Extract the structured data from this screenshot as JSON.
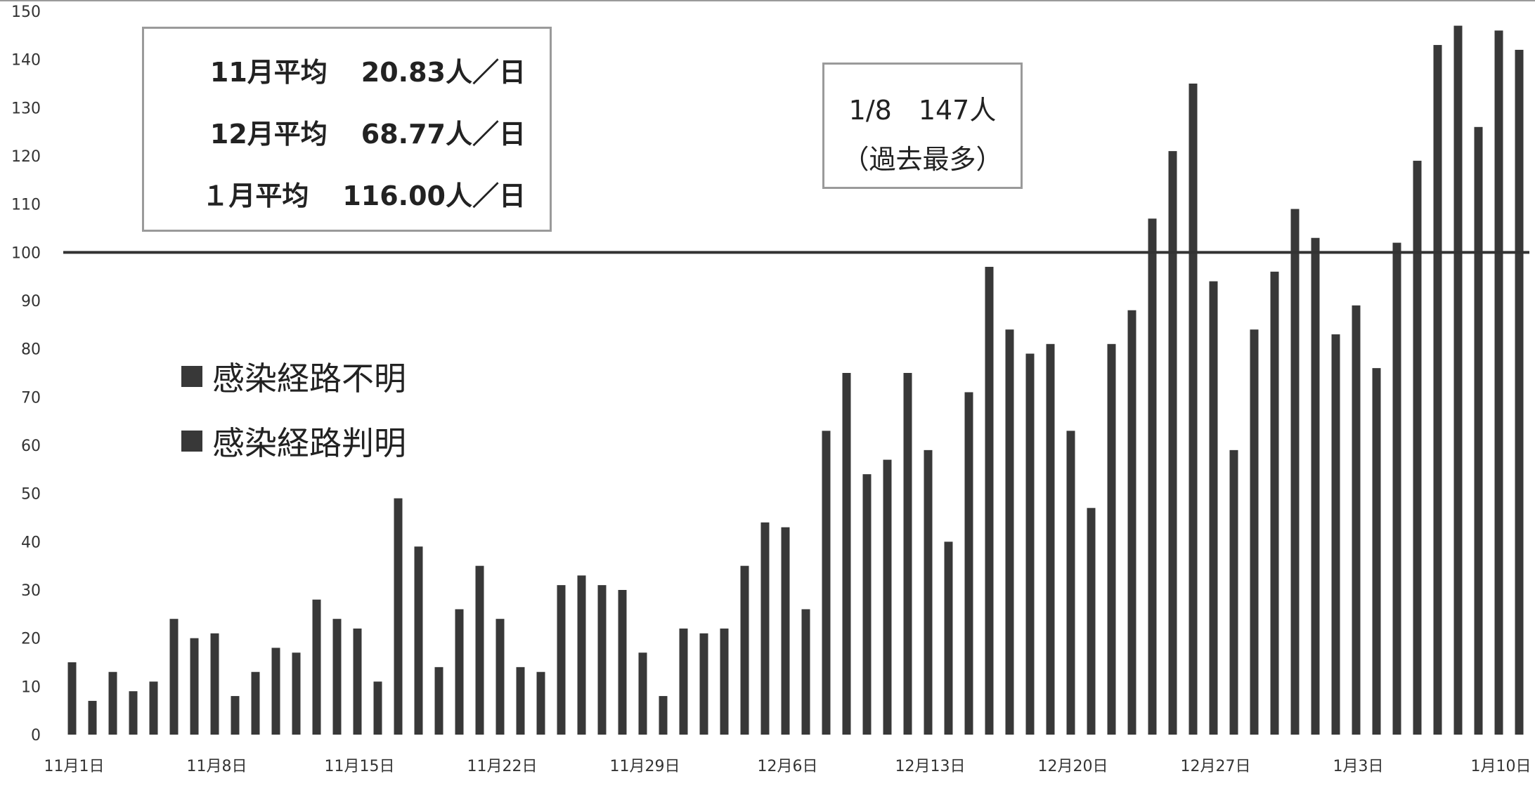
{
  "chart_data": {
    "type": "bar",
    "ylim": [
      0,
      150
    ],
    "y_ticks": [
      "0",
      "10",
      "20",
      "30",
      "40",
      "50",
      "60",
      "70",
      "80",
      "90",
      "100",
      "110",
      "120",
      "130",
      "140",
      "150"
    ],
    "x_tick_labels": [
      {
        "index": 0,
        "label": "11月1日"
      },
      {
        "index": 7,
        "label": "11月8日"
      },
      {
        "index": 14,
        "label": "11月15日"
      },
      {
        "index": 21,
        "label": "11月22日"
      },
      {
        "index": 28,
        "label": "11月29日"
      },
      {
        "index": 35,
        "label": "12月6日"
      },
      {
        "index": 42,
        "label": "12月13日"
      },
      {
        "index": 49,
        "label": "12月20日"
      },
      {
        "index": 56,
        "label": "12月27日"
      },
      {
        "index": 63,
        "label": "1月3日"
      },
      {
        "index": 70,
        "label": "1月10日"
      }
    ],
    "values": [
      15,
      7,
      13,
      9,
      11,
      24,
      20,
      21,
      8,
      13,
      18,
      17,
      28,
      24,
      22,
      11,
      49,
      39,
      14,
      26,
      35,
      24,
      14,
      13,
      31,
      33,
      31,
      30,
      17,
      8,
      22,
      21,
      22,
      35,
      44,
      43,
      26,
      63,
      75,
      54,
      57,
      75,
      59,
      40,
      71,
      97,
      84,
      79,
      81,
      63,
      47,
      81,
      88,
      107,
      121,
      135,
      94,
      59,
      84,
      96,
      109,
      103,
      83,
      89,
      76,
      102,
      119,
      143,
      147,
      126,
      146,
      142
    ],
    "reference_line": 100,
    "bar_color": "#383838",
    "legend": [
      {
        "label": "感染経路不明",
        "color": "#383838"
      },
      {
        "label": "感染経路判明",
        "color": "#383838"
      }
    ]
  },
  "averages": [
    {
      "label": "11月平均",
      "value": "20.83人／日"
    },
    {
      "label": "12月平均",
      "value": "68.77人／日"
    },
    {
      "label": "１月平均",
      "value": "116.00人／日"
    }
  ],
  "record": {
    "line1": "1/8　147人",
    "line2": "（過去最多）"
  }
}
